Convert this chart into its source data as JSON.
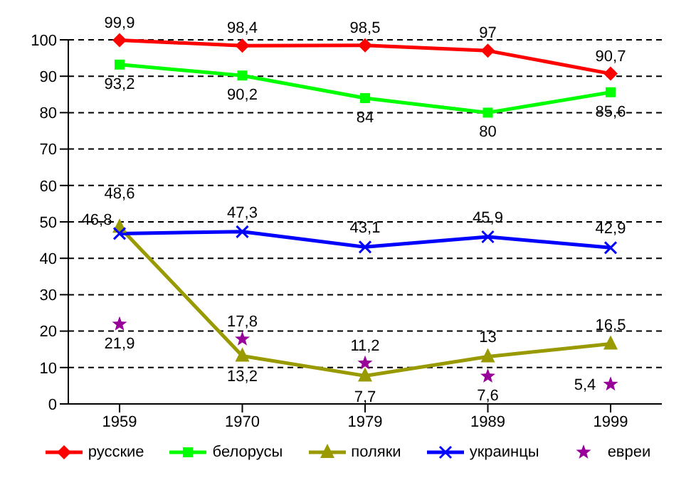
{
  "chart_data": {
    "type": "line",
    "categories": [
      "1959",
      "1970",
      "1979",
      "1989",
      "1999"
    ],
    "series": [
      {
        "name": "русские",
        "color": "#ff0000",
        "marker": "diamond",
        "values": [
          99.9,
          98.4,
          98.5,
          97,
          90.7
        ],
        "value_labels": [
          "99,9",
          "98,4",
          "98,5",
          "97",
          "90,7"
        ]
      },
      {
        "name": "белорусы",
        "color": "#00ff00",
        "marker": "square",
        "values": [
          93.2,
          90.2,
          84,
          80,
          85.6
        ],
        "value_labels": [
          "93,2",
          "90,2",
          "84",
          "80",
          "85,6"
        ]
      },
      {
        "name": "поляки",
        "color": "#999900",
        "marker": "triangle",
        "values": [
          48.6,
          13.2,
          7.7,
          13,
          16.5
        ],
        "value_labels": [
          "48,6",
          "13,2",
          "7,7",
          "13",
          "16,5"
        ]
      },
      {
        "name": "украинцы",
        "color": "#0000ff",
        "marker": "cross",
        "values": [
          46.8,
          47.3,
          43.1,
          45.9,
          42.9
        ],
        "value_labels": [
          "46,8",
          "47,3",
          "43,1",
          "45,9",
          "42,9"
        ]
      },
      {
        "name": "евреи",
        "type": "scatter",
        "color": "#990099",
        "marker": "star",
        "values": [
          21.9,
          17.8,
          11.2,
          7.6,
          5.4
        ],
        "value_labels": [
          "21,9",
          "17,8",
          "11,2",
          "7,6",
          "5,4"
        ]
      }
    ],
    "ylim": [
      0,
      100
    ],
    "yticks": [
      0,
      10,
      20,
      30,
      40,
      50,
      60,
      70,
      80,
      90,
      100
    ],
    "grid": "y",
    "legend": "bottom"
  }
}
